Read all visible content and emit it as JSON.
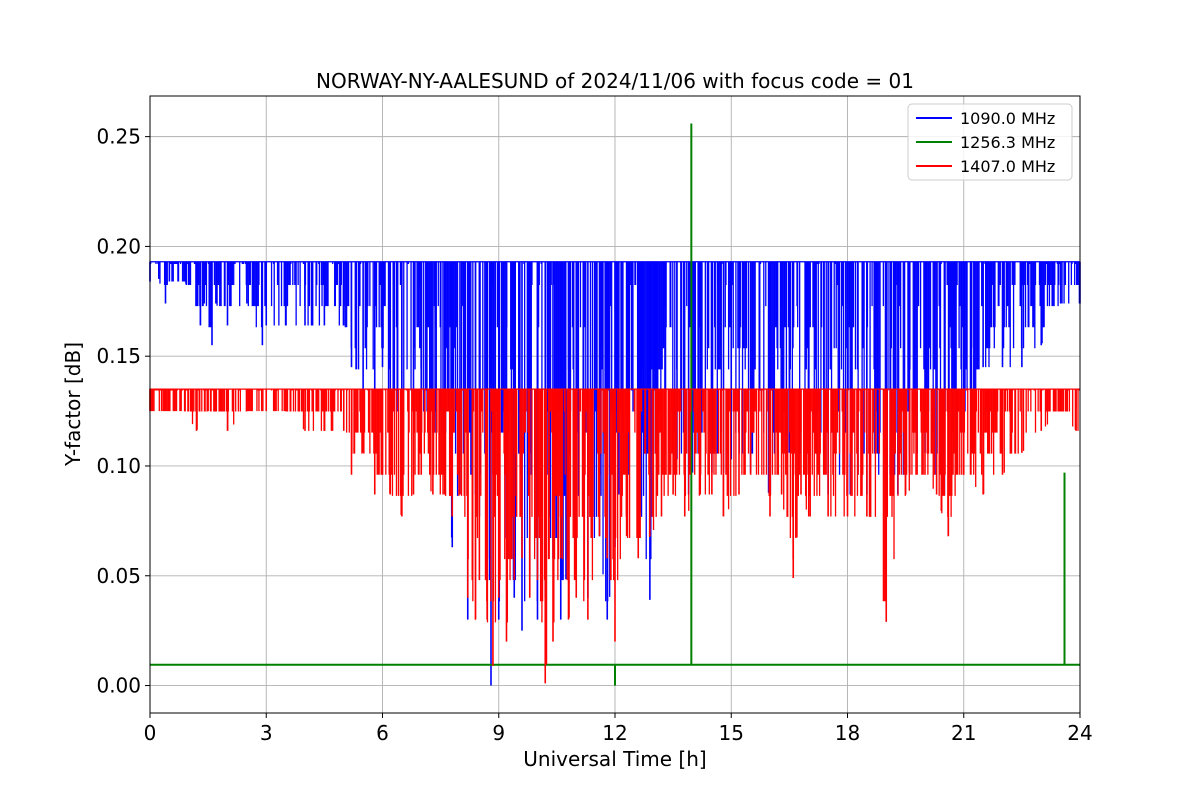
{
  "chart_data": {
    "type": "line",
    "title": "NORWAY-NY-AALESUND of 2024/11/06 with focus code = 01",
    "xlabel": "Universal Time [h]",
    "ylabel": "Y-factor [dB]",
    "xlim": [
      0,
      24
    ],
    "ylim": [
      -0.0125,
      0.2685
    ],
    "xticks": [
      0,
      3,
      6,
      9,
      12,
      15,
      18,
      21,
      24
    ],
    "yticks": [
      0.0,
      0.05,
      0.1,
      0.15,
      0.2,
      0.25
    ],
    "ytick_labels": [
      "0.00",
      "0.05",
      "0.10",
      "0.15",
      "0.20",
      "0.25"
    ],
    "grid": true,
    "legend_position": "top-right",
    "series": [
      {
        "name": "1090.0 MHz",
        "color": "#0000ff",
        "baseline": 0.193,
        "x": [
          0,
          0.05,
          0.1,
          0.4,
          0.5,
          0.9,
          1.3,
          1.4,
          1.6,
          1.7,
          2.0,
          2.5,
          2.9,
          3.0,
          3.5,
          4.0,
          4.5,
          5.0,
          5.2,
          5.5,
          5.8,
          6.0,
          6.2,
          6.5,
          6.8,
          7.0,
          7.3,
          7.6,
          7.8,
          8.0,
          8.2,
          8.4,
          8.5,
          8.7,
          8.8,
          8.9,
          9.0,
          9.2,
          9.4,
          9.6,
          9.8,
          10.0,
          10.2,
          10.4,
          10.6,
          10.8,
          11.0,
          11.3,
          11.6,
          11.8,
          12.0,
          12.1,
          12.3,
          12.6,
          12.9,
          13.1,
          13.3,
          13.6,
          13.9,
          14.0,
          14.2,
          14.5,
          14.8,
          15.0,
          15.5,
          16.0,
          16.5,
          17.0,
          17.5,
          18.0,
          18.5,
          19.0,
          19.3,
          19.6,
          20.0,
          20.5,
          20.8,
          21.0,
          21.2,
          21.5,
          22.0,
          22.5,
          23.0,
          23.5,
          24.0
        ],
        "y": [
          0.184,
          0.193,
          0.193,
          0.174,
          0.184,
          0.184,
          0.164,
          0.174,
          0.155,
          0.174,
          0.164,
          0.174,
          0.155,
          0.164,
          0.164,
          0.164,
          0.164,
          0.164,
          0.145,
          0.135,
          0.125,
          0.145,
          0.125,
          0.115,
          0.125,
          0.115,
          0.115,
          0.115,
          0.063,
          0.087,
          0.03,
          0.087,
          0.077,
          0.048,
          0.0,
          0.087,
          0.03,
          0.068,
          0.04,
          0.025,
          0.048,
          0.03,
          0.04,
          0.058,
          0.03,
          0.058,
          0.068,
          0.04,
          0.068,
          0.03,
          0.063,
          0.087,
          0.097,
          0.087,
          0.039,
          0.11,
          0.106,
          0.103,
          0.087,
          0.097,
          0.106,
          0.097,
          0.097,
          0.103,
          0.097,
          0.087,
          0.106,
          0.097,
          0.087,
          0.087,
          0.087,
          0.097,
          0.087,
          0.097,
          0.106,
          0.087,
          0.106,
          0.125,
          0.106,
          0.145,
          0.145,
          0.145,
          0.155,
          0.174,
          0.174
        ]
      },
      {
        "name": "1256.3 MHz",
        "color": "#008000",
        "baseline": 0.0095,
        "x": [
          12.0,
          13.97,
          23.6
        ],
        "y": [
          0.0,
          0.256,
          0.097
        ]
      },
      {
        "name": "1407.0 MHz",
        "color": "#ff0000",
        "baseline": 0.135,
        "x": [
          0,
          0.3,
          0.5,
          0.9,
          1.2,
          1.5,
          2.0,
          2.5,
          3.0,
          3.5,
          4.0,
          4.5,
          5.0,
          5.2,
          5.5,
          5.8,
          6.0,
          6.2,
          6.5,
          6.8,
          7.0,
          7.3,
          7.6,
          7.8,
          8.0,
          8.2,
          8.4,
          8.5,
          8.7,
          8.85,
          9.0,
          9.2,
          9.4,
          9.6,
          9.8,
          10.0,
          10.2,
          10.4,
          10.6,
          10.8,
          11.0,
          11.3,
          11.6,
          11.8,
          12.0,
          12.3,
          12.6,
          12.9,
          13.2,
          13.5,
          13.8,
          14.2,
          14.5,
          14.8,
          15.2,
          15.5,
          16.0,
          16.3,
          16.6,
          16.8,
          17.0,
          17.5,
          18.0,
          18.5,
          19.0,
          19.5,
          20.0,
          20.3,
          20.6,
          21.0,
          21.5,
          22.0,
          22.5,
          23.0,
          23.5,
          23.9
        ],
        "y": [
          0.125,
          0.125,
          0.125,
          0.125,
          0.116,
          0.125,
          0.116,
          0.125,
          0.125,
          0.125,
          0.116,
          0.116,
          0.116,
          0.096,
          0.106,
          0.087,
          0.096,
          0.087,
          0.077,
          0.087,
          0.096,
          0.087,
          0.087,
          0.077,
          0.087,
          0.04,
          0.03,
          0.048,
          0.03,
          0.009,
          0.04,
          0.02,
          0.048,
          0.058,
          0.04,
          0.048,
          0.001,
          0.02,
          0.058,
          0.03,
          0.04,
          0.03,
          0.068,
          0.058,
          0.02,
          0.068,
          0.058,
          0.068,
          0.077,
          0.087,
          0.077,
          0.087,
          0.087,
          0.077,
          0.087,
          0.096,
          0.077,
          0.087,
          0.049,
          0.087,
          0.077,
          0.077,
          0.077,
          0.077,
          0.029,
          0.087,
          0.096,
          0.087,
          0.068,
          0.096,
          0.087,
          0.096,
          0.106,
          0.116,
          0.125,
          0.116
        ]
      }
    ]
  }
}
